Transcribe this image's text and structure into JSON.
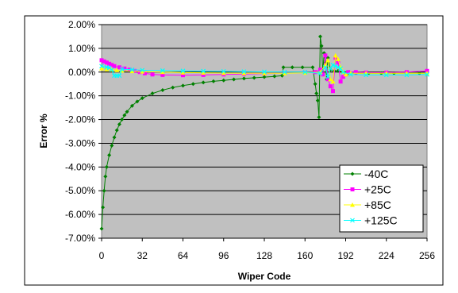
{
  "chart_data": {
    "type": "scatter",
    "xlabel": "Wiper Code",
    "ylabel": "Error %",
    "xlim": [
      0,
      256
    ],
    "ylim": [
      -7,
      2
    ],
    "x_ticks": [
      "0",
      "32",
      "64",
      "96",
      "128",
      "160",
      "192",
      "224",
      "256"
    ],
    "y_ticks": [
      "2.00%",
      "1.00%",
      "0.00%",
      "-1.00%",
      "-2.00%",
      "-3.00%",
      "-4.00%",
      "-5.00%",
      "-6.00%",
      "-7.00%"
    ],
    "grid": "horizontal",
    "plot_background": "#c0c0c0",
    "legend_position": "bottom-right",
    "series": [
      {
        "name": "-40C",
        "color": "#008000",
        "marker": "diamond",
        "points": [
          [
            0,
            -6.6
          ],
          [
            1,
            -5.7
          ],
          [
            2,
            -5.0
          ],
          [
            3,
            -4.4
          ],
          [
            4,
            -4.0
          ],
          [
            6,
            -3.5
          ],
          [
            8,
            -3.1
          ],
          [
            10,
            -2.75
          ],
          [
            12,
            -2.45
          ],
          [
            14,
            -2.2
          ],
          [
            16,
            -2.0
          ],
          [
            18,
            -1.82
          ],
          [
            20,
            -1.67
          ],
          [
            24,
            -1.42
          ],
          [
            28,
            -1.24
          ],
          [
            32,
            -1.1
          ],
          [
            40,
            -0.9
          ],
          [
            48,
            -0.76
          ],
          [
            56,
            -0.65
          ],
          [
            64,
            -0.57
          ],
          [
            72,
            -0.5
          ],
          [
            80,
            -0.44
          ],
          [
            88,
            -0.39
          ],
          [
            96,
            -0.35
          ],
          [
            104,
            -0.31
          ],
          [
            112,
            -0.27
          ],
          [
            120,
            -0.24
          ],
          [
            128,
            -0.21
          ],
          [
            136,
            -0.18
          ],
          [
            142,
            -0.15
          ],
          [
            143,
            0.2
          ],
          [
            150,
            0.2
          ],
          [
            158,
            0.2
          ],
          [
            166,
            0.2
          ],
          [
            168,
            -0.5
          ],
          [
            169,
            -0.9
          ],
          [
            170,
            -1.2
          ],
          [
            171,
            -1.9
          ],
          [
            172,
            1.5
          ],
          [
            173,
            1.1
          ],
          [
            174,
            0.0
          ],
          [
            175,
            0.8
          ],
          [
            176,
            0.4
          ],
          [
            177,
            -0.3
          ],
          [
            178,
            0.6
          ],
          [
            180,
            0.1
          ],
          [
            183,
            0.05
          ],
          [
            186,
            0.05
          ],
          [
            190,
            0.0
          ],
          [
            194,
            -0.05
          ],
          [
            200,
            -0.05
          ],
          [
            210,
            -0.05
          ],
          [
            220,
            -0.05
          ],
          [
            230,
            -0.05
          ],
          [
            240,
            -0.05
          ],
          [
            250,
            -0.05
          ],
          [
            256,
            -0.05
          ]
        ]
      },
      {
        "name": "+25C",
        "color": "#ff00ff",
        "marker": "square",
        "points": [
          [
            0,
            0.5
          ],
          [
            2,
            0.45
          ],
          [
            4,
            0.4
          ],
          [
            6,
            0.35
          ],
          [
            8,
            0.3
          ],
          [
            10,
            0.25
          ],
          [
            14,
            0.2
          ],
          [
            18,
            0.15
          ],
          [
            22,
            0.1
          ],
          [
            26,
            0.05
          ],
          [
            30,
            0.0
          ],
          [
            34,
            -0.05
          ],
          [
            40,
            -0.1
          ],
          [
            48,
            -0.12
          ],
          [
            64,
            -0.13
          ],
          [
            80,
            -0.12
          ],
          [
            96,
            -0.1
          ],
          [
            112,
            -0.08
          ],
          [
            128,
            -0.06
          ],
          [
            144,
            -0.04
          ],
          [
            160,
            -0.02
          ],
          [
            168,
            0.0
          ],
          [
            172,
            0.1
          ],
          [
            174,
            -0.1
          ],
          [
            176,
            0.7
          ],
          [
            178,
            -0.3
          ],
          [
            180,
            -0.6
          ],
          [
            182,
            -0.8
          ],
          [
            184,
            0.6
          ],
          [
            186,
            0.4
          ],
          [
            188,
            -0.4
          ],
          [
            190,
            -0.2
          ],
          [
            192,
            -0.1
          ],
          [
            194,
            0.0
          ],
          [
            200,
            0.0
          ],
          [
            208,
            -0.02
          ],
          [
            224,
            -0.02
          ],
          [
            240,
            0.0
          ],
          [
            256,
            0.05
          ]
        ]
      },
      {
        "name": "+85C",
        "color": "#ffff00",
        "marker": "triangle",
        "points": [
          [
            0,
            0.15
          ],
          [
            4,
            0.12
          ],
          [
            8,
            0.1
          ],
          [
            12,
            0.08
          ],
          [
            16,
            0.06
          ],
          [
            24,
            0.04
          ],
          [
            32,
            0.02
          ],
          [
            48,
            0.0
          ],
          [
            64,
            -0.02
          ],
          [
            80,
            -0.03
          ],
          [
            96,
            -0.04
          ],
          [
            112,
            -0.05
          ],
          [
            128,
            -0.05
          ],
          [
            144,
            -0.05
          ],
          [
            160,
            -0.03
          ],
          [
            172,
            0.0
          ],
          [
            176,
            0.3
          ],
          [
            178,
            0.5
          ],
          [
            180,
            -0.3
          ],
          [
            182,
            -0.4
          ],
          [
            184,
            0.7
          ],
          [
            186,
            0.55
          ],
          [
            188,
            0.2
          ],
          [
            190,
            0.0
          ],
          [
            192,
            -0.1
          ],
          [
            196,
            -0.05
          ],
          [
            208,
            -0.05
          ],
          [
            224,
            -0.05
          ],
          [
            240,
            -0.05
          ],
          [
            256,
            -0.05
          ]
        ]
      },
      {
        "name": "+125C",
        "color": "#00ffff",
        "marker": "x",
        "points": [
          [
            0,
            0.25
          ],
          [
            4,
            0.2
          ],
          [
            6,
            0.18
          ],
          [
            8,
            0.1
          ],
          [
            10,
            -0.15
          ],
          [
            12,
            -0.15
          ],
          [
            14,
            -0.15
          ],
          [
            16,
            0.12
          ],
          [
            24,
            0.1
          ],
          [
            32,
            0.08
          ],
          [
            48,
            0.06
          ],
          [
            64,
            0.05
          ],
          [
            80,
            0.04
          ],
          [
            96,
            0.03
          ],
          [
            112,
            0.02
          ],
          [
            128,
            0.01
          ],
          [
            144,
            0.0
          ],
          [
            160,
            0.0
          ],
          [
            172,
            -0.05
          ],
          [
            176,
            0.2
          ],
          [
            178,
            -0.2
          ],
          [
            180,
            0.15
          ],
          [
            182,
            0.3
          ],
          [
            184,
            0.25
          ],
          [
            186,
            0.2
          ],
          [
            188,
            0.15
          ],
          [
            190,
            0.0
          ],
          [
            196,
            -0.1
          ],
          [
            208,
            -0.12
          ],
          [
            224,
            -0.12
          ],
          [
            240,
            -0.12
          ],
          [
            256,
            -0.1
          ]
        ]
      }
    ]
  }
}
